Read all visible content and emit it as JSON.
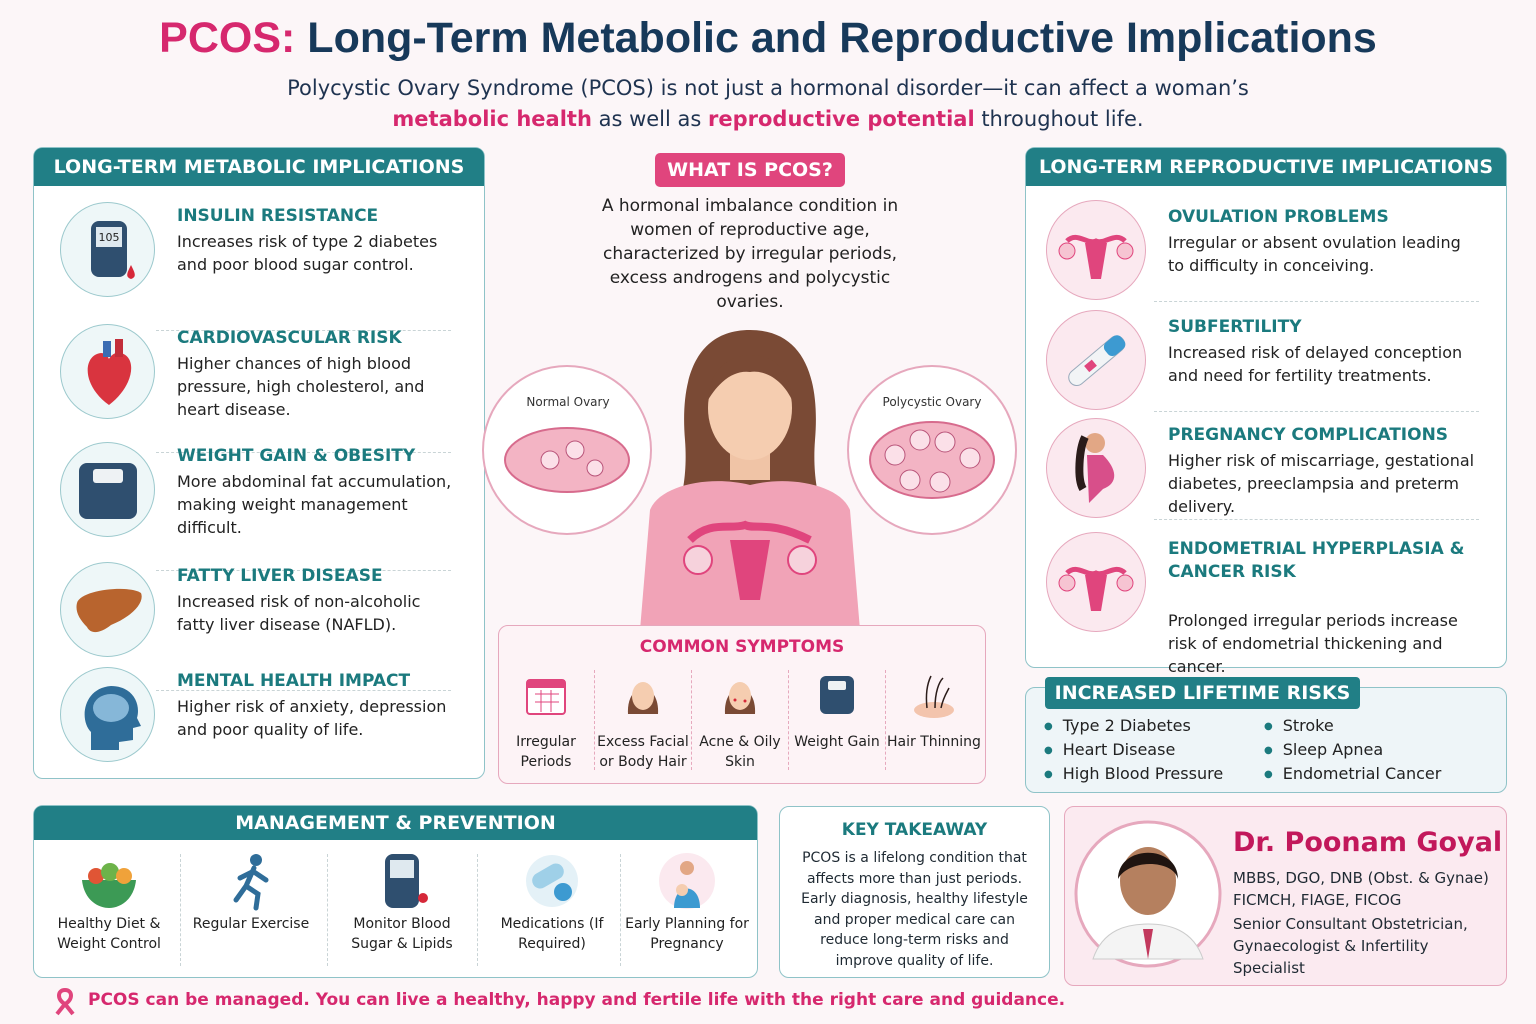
{
  "header": {
    "title_prefix": "PCOS:",
    "title": "Long-Term Metabolic and Reproductive Implications",
    "subtitle_line1": "Polycystic Ovary Syndrome (PCOS) is not just a hormonal disorder—it can affect a woman’s",
    "subtitle_highlight1": "metabolic health",
    "subtitle_mid": "as well as",
    "subtitle_highlight2": "reproductive potential",
    "subtitle_end": "throughout life."
  },
  "metabolic": {
    "title": "LONG-TERM METABOLIC IMPLICATIONS",
    "items": [
      {
        "title": "INSULIN RESISTANCE",
        "text": "Increases risk of type 2 diabetes and poor blood sugar control."
      },
      {
        "title": "CARDIOVASCULAR RISK",
        "text": "Higher chances of high blood pressure, high cholesterol, and heart disease."
      },
      {
        "title": "WEIGHT GAIN & OBESITY",
        "text": "More abdominal fat accumulation, making weight management difficult."
      },
      {
        "title": "FATTY LIVER DISEASE",
        "text": "Increased risk of non-alcoholic fatty liver disease (NAFLD)."
      },
      {
        "title": "MENTAL HEALTH IMPACT",
        "text": "Higher risk of anxiety, depression and poor quality of life."
      }
    ]
  },
  "what_is": {
    "title": "WHAT IS PCOS?",
    "text": "A hormonal imbalance condition in women of reproductive age, characterized by irregular periods, excess androgens and polycystic ovaries.",
    "normal_ovary": "Normal Ovary",
    "polycystic_ovary": "Polycystic Ovary",
    "glucometer_reading": "105"
  },
  "symptoms": {
    "title": "COMMON SYMPTOMS",
    "items": [
      "Irregular Periods",
      "Excess Facial or Body Hair",
      "Acne & Oily Skin",
      "Weight Gain",
      "Hair Thinning"
    ]
  },
  "reproductive": {
    "title": "LONG-TERM REPRODUCTIVE IMPLICATIONS",
    "items": [
      {
        "title": "OVULATION PROBLEMS",
        "text": "Irregular or absent ovulation leading to difficulty in conceiving."
      },
      {
        "title": "SUBFERTILITY",
        "text": "Increased risk of delayed conception and need for fertility treatments."
      },
      {
        "title": "PREGNANCY COMPLICATIONS",
        "text": "Higher risk of miscarriage, gestational diabetes, preeclampsia and preterm delivery."
      },
      {
        "title": "ENDOMETRIAL HYPERPLASIA & CANCER RISK",
        "text": "Prolonged irregular periods increase risk of endometrial thickening and cancer."
      }
    ]
  },
  "lifetime_risks": {
    "title": "INCREASED LIFETIME RISKS",
    "items": [
      "Type 2 Diabetes",
      "Heart Disease",
      "High Blood Pressure",
      "Stroke",
      "Sleep Apnea",
      "Endometrial Cancer"
    ]
  },
  "management": {
    "title": "MANAGEMENT & PREVENTION",
    "items": [
      "Healthy Diet & Weight Control",
      "Regular Exercise",
      "Monitor Blood Sugar & Lipids",
      "Medications (If Required)",
      "Early Planning for Pregnancy"
    ]
  },
  "takeaway": {
    "title": "KEY TAKEAWAY",
    "text": "PCOS is a lifelong condition that affects more than just periods. Early diagnosis, healthy lifestyle and proper medical care can reduce long-term risks and improve quality of life."
  },
  "doctor": {
    "name": "Dr. Poonam Goyal",
    "credentials": "MBBS, DGO, DNB (Obst. & Gynae) FICMCH, FIAGE, FICOG",
    "role": "Senior Consultant Obstetrician, Gynaecologist & Infertility Specialist"
  },
  "footer": {
    "text": "PCOS can be managed. You can live a healthy, happy and fertile life with the right care and guidance."
  }
}
